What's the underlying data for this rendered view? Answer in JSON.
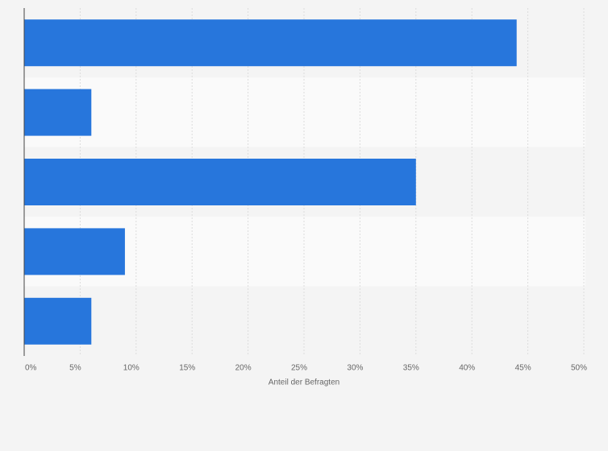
{
  "chart_data": {
    "type": "bar",
    "orientation": "horizontal",
    "x_label": "Anteil der Befragten",
    "categories": [
      null,
      null,
      null,
      null,
      null
    ],
    "values": [
      44,
      6,
      35,
      9,
      6
    ],
    "color": "#2776dc",
    "xlim": [
      0,
      50
    ],
    "xticks": [
      {
        "value": 0,
        "label": "0%"
      },
      {
        "value": 5,
        "label": "5%"
      },
      {
        "value": 10,
        "label": "10%"
      },
      {
        "value": 15,
        "label": "15%"
      },
      {
        "value": 20,
        "label": "20%"
      },
      {
        "value": 25,
        "label": "25%"
      },
      {
        "value": 30,
        "label": "30%"
      },
      {
        "value": 35,
        "label": "35%"
      },
      {
        "value": 40,
        "label": "40%"
      },
      {
        "value": 45,
        "label": "45%"
      },
      {
        "value": 50,
        "label": "50%"
      }
    ],
    "grid": true
  }
}
